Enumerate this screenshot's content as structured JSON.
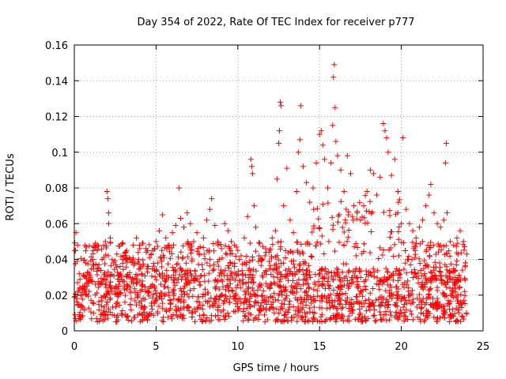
{
  "chart_data": {
    "type": "scatter",
    "title": "Day 354 of 2022, Rate Of TEC Index for receiver p777",
    "xlabel": "GPS time / hours",
    "ylabel": "ROTI / TECUs",
    "xlim": [
      0,
      25
    ],
    "ylim": [
      0,
      0.16
    ],
    "xticks": [
      0,
      5,
      10,
      15,
      20,
      25
    ],
    "xtick_labels": [
      "0",
      "5",
      "10",
      "15",
      "20",
      "25"
    ],
    "yticks": [
      0,
      0.02,
      0.04,
      0.06,
      0.08,
      0.1,
      0.12,
      0.14,
      0.16
    ],
    "ytick_labels": [
      "0",
      "0.02",
      "0.04",
      "0.06",
      "0.08",
      "0.1",
      "0.12",
      "0.14",
      "0.16"
    ],
    "grid": true,
    "marker": "+",
    "color": "#ff0000",
    "series": [
      {
        "points": [
          [
            0.1,
            0.055
          ],
          [
            0.2,
            0.048
          ],
          [
            0.3,
            0.032
          ],
          [
            0.5,
            0.025
          ],
          [
            0.7,
            0.038
          ],
          [
            0.9,
            0.022
          ],
          [
            1.0,
            0.03
          ],
          [
            1.2,
            0.047
          ],
          [
            1.4,
            0.045
          ],
          [
            1.5,
            0.035
          ],
          [
            1.7,
            0.04
          ],
          [
            1.9,
            0.05
          ],
          [
            2.0,
            0.078
          ],
          [
            2.05,
            0.074
          ],
          [
            2.1,
            0.066
          ],
          [
            2.1,
            0.06
          ],
          [
            2.2,
            0.052
          ],
          [
            2.4,
            0.038
          ],
          [
            2.6,
            0.043
          ],
          [
            2.8,
            0.036
          ],
          [
            3.0,
            0.042
          ],
          [
            3.2,
            0.045
          ],
          [
            3.4,
            0.04
          ],
          [
            3.6,
            0.048
          ],
          [
            3.8,
            0.052
          ],
          [
            4.0,
            0.046
          ],
          [
            4.2,
            0.049
          ],
          [
            4.4,
            0.044
          ],
          [
            4.6,
            0.041
          ],
          [
            4.8,
            0.045
          ],
          [
            5.0,
            0.05
          ],
          [
            5.2,
            0.056
          ],
          [
            5.4,
            0.065
          ],
          [
            5.6,
            0.052
          ],
          [
            5.8,
            0.048
          ],
          [
            6.0,
            0.055
          ],
          [
            6.2,
            0.059
          ],
          [
            6.4,
            0.08
          ],
          [
            6.5,
            0.063
          ],
          [
            6.7,
            0.058
          ],
          [
            6.9,
            0.066
          ],
          [
            7.1,
            0.06
          ],
          [
            7.3,
            0.05
          ],
          [
            7.5,
            0.055
          ],
          [
            7.7,
            0.047
          ],
          [
            7.9,
            0.052
          ],
          [
            8.1,
            0.062
          ],
          [
            8.3,
            0.068
          ],
          [
            8.4,
            0.074
          ],
          [
            8.6,
            0.059
          ],
          [
            8.8,
            0.048
          ],
          [
            9.0,
            0.046
          ],
          [
            9.2,
            0.06
          ],
          [
            9.4,
            0.056
          ],
          [
            9.6,
            0.05
          ],
          [
            9.8,
            0.048
          ],
          [
            10.0,
            0.045
          ],
          [
            10.2,
            0.042
          ],
          [
            10.4,
            0.052
          ],
          [
            10.6,
            0.064
          ],
          [
            10.8,
            0.096
          ],
          [
            10.85,
            0.092
          ],
          [
            10.9,
            0.088
          ],
          [
            11.0,
            0.07
          ],
          [
            11.1,
            0.058
          ],
          [
            11.3,
            0.042
          ],
          [
            11.5,
            0.04
          ],
          [
            11.7,
            0.046
          ],
          [
            11.9,
            0.044
          ],
          [
            12.1,
            0.052
          ],
          [
            12.3,
            0.056
          ],
          [
            12.4,
            0.085
          ],
          [
            12.5,
            0.105
          ],
          [
            12.55,
            0.112
          ],
          [
            12.6,
            0.128
          ],
          [
            12.65,
            0.126
          ],
          [
            12.8,
            0.07
          ],
          [
            13.0,
            0.091
          ],
          [
            13.2,
            0.062
          ],
          [
            13.4,
            0.055
          ],
          [
            13.6,
            0.078
          ],
          [
            13.7,
            0.1
          ],
          [
            13.8,
            0.107
          ],
          [
            13.85,
            0.126
          ],
          [
            14.0,
            0.092
          ],
          [
            14.2,
            0.083
          ],
          [
            14.4,
            0.072
          ],
          [
            14.6,
            0.08
          ],
          [
            14.8,
            0.094
          ],
          [
            15.0,
            0.11
          ],
          [
            15.1,
            0.112
          ],
          [
            15.2,
            0.104
          ],
          [
            15.3,
            0.096
          ],
          [
            15.5,
            0.08
          ],
          [
            15.7,
            0.094
          ],
          [
            15.8,
            0.115
          ],
          [
            15.85,
            0.142
          ],
          [
            15.9,
            0.149
          ],
          [
            15.95,
            0.125
          ],
          [
            16.0,
            0.106
          ],
          [
            16.1,
            0.098
          ],
          [
            16.3,
            0.09
          ],
          [
            16.5,
            0.078
          ],
          [
            16.7,
            0.098
          ],
          [
            16.9,
            0.088
          ],
          [
            17.1,
            0.07
          ],
          [
            17.3,
            0.066
          ],
          [
            17.5,
            0.062
          ],
          [
            17.7,
            0.07
          ],
          [
            17.9,
            0.078
          ],
          [
            18.1,
            0.09
          ],
          [
            18.3,
            0.088
          ],
          [
            18.5,
            0.076
          ],
          [
            18.7,
            0.086
          ],
          [
            18.9,
            0.116
          ],
          [
            19.0,
            0.112
          ],
          [
            19.1,
            0.108
          ],
          [
            19.2,
            0.1
          ],
          [
            19.4,
            0.087
          ],
          [
            19.6,
            0.096
          ],
          [
            19.8,
            0.078
          ],
          [
            20.0,
            0.06
          ],
          [
            20.1,
            0.108
          ],
          [
            20.3,
            0.068
          ],
          [
            20.5,
            0.06
          ],
          [
            20.7,
            0.056
          ],
          [
            20.9,
            0.052
          ],
          [
            21.1,
            0.058
          ],
          [
            21.3,
            0.062
          ],
          [
            21.5,
            0.07
          ],
          [
            21.7,
            0.076
          ],
          [
            21.8,
            0.082
          ],
          [
            22.0,
            0.066
          ],
          [
            22.2,
            0.06
          ],
          [
            22.4,
            0.058
          ],
          [
            22.6,
            0.062
          ],
          [
            22.7,
            0.094
          ],
          [
            22.75,
            0.105
          ],
          [
            22.8,
            0.066
          ],
          [
            23.0,
            0.05
          ],
          [
            23.2,
            0.048
          ],
          [
            23.4,
            0.052
          ],
          [
            23.6,
            0.056
          ],
          [
            23.8,
            0.05
          ],
          [
            24.0,
            0.043
          ]
        ],
        "baseline_band": [
          0.005,
          0.035
        ]
      }
    ]
  }
}
